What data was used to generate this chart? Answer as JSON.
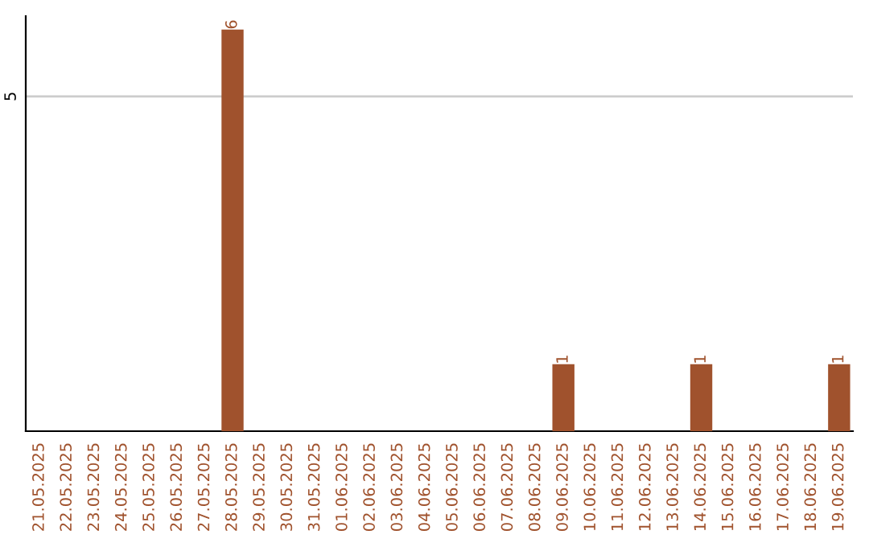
{
  "chart_data": {
    "type": "bar",
    "categories": [
      "21.05.2025",
      "22.05.2025",
      "23.05.2025",
      "24.05.2025",
      "25.05.2025",
      "26.05.2025",
      "27.05.2025",
      "28.05.2025",
      "29.05.2025",
      "30.05.2025",
      "31.05.2025",
      "01.06.2025",
      "02.06.2025",
      "03.06.2025",
      "04.06.2025",
      "05.06.2025",
      "06.06.2025",
      "07.06.2025",
      "08.06.2025",
      "09.06.2025",
      "10.06.2025",
      "11.06.2025",
      "12.06.2025",
      "13.06.2025",
      "14.06.2025",
      "15.06.2025",
      "16.06.2025",
      "17.06.2025",
      "18.06.2025",
      "19.06.2025"
    ],
    "values": [
      0,
      0,
      0,
      0,
      0,
      0,
      0,
      6,
      0,
      0,
      0,
      0,
      0,
      0,
      0,
      0,
      0,
      0,
      0,
      1,
      0,
      0,
      0,
      0,
      1,
      0,
      0,
      0,
      0,
      1
    ],
    "value_labels": [
      null,
      null,
      null,
      null,
      null,
      null,
      null,
      "6",
      null,
      null,
      null,
      null,
      null,
      null,
      null,
      null,
      null,
      null,
      null,
      "1",
      null,
      null,
      null,
      null,
      "1",
      null,
      null,
      null,
      null,
      "1"
    ],
    "color": "#a0522d",
    "ylim": [
      0,
      6.2
    ],
    "yticks": [
      5
    ],
    "grid": "y"
  }
}
